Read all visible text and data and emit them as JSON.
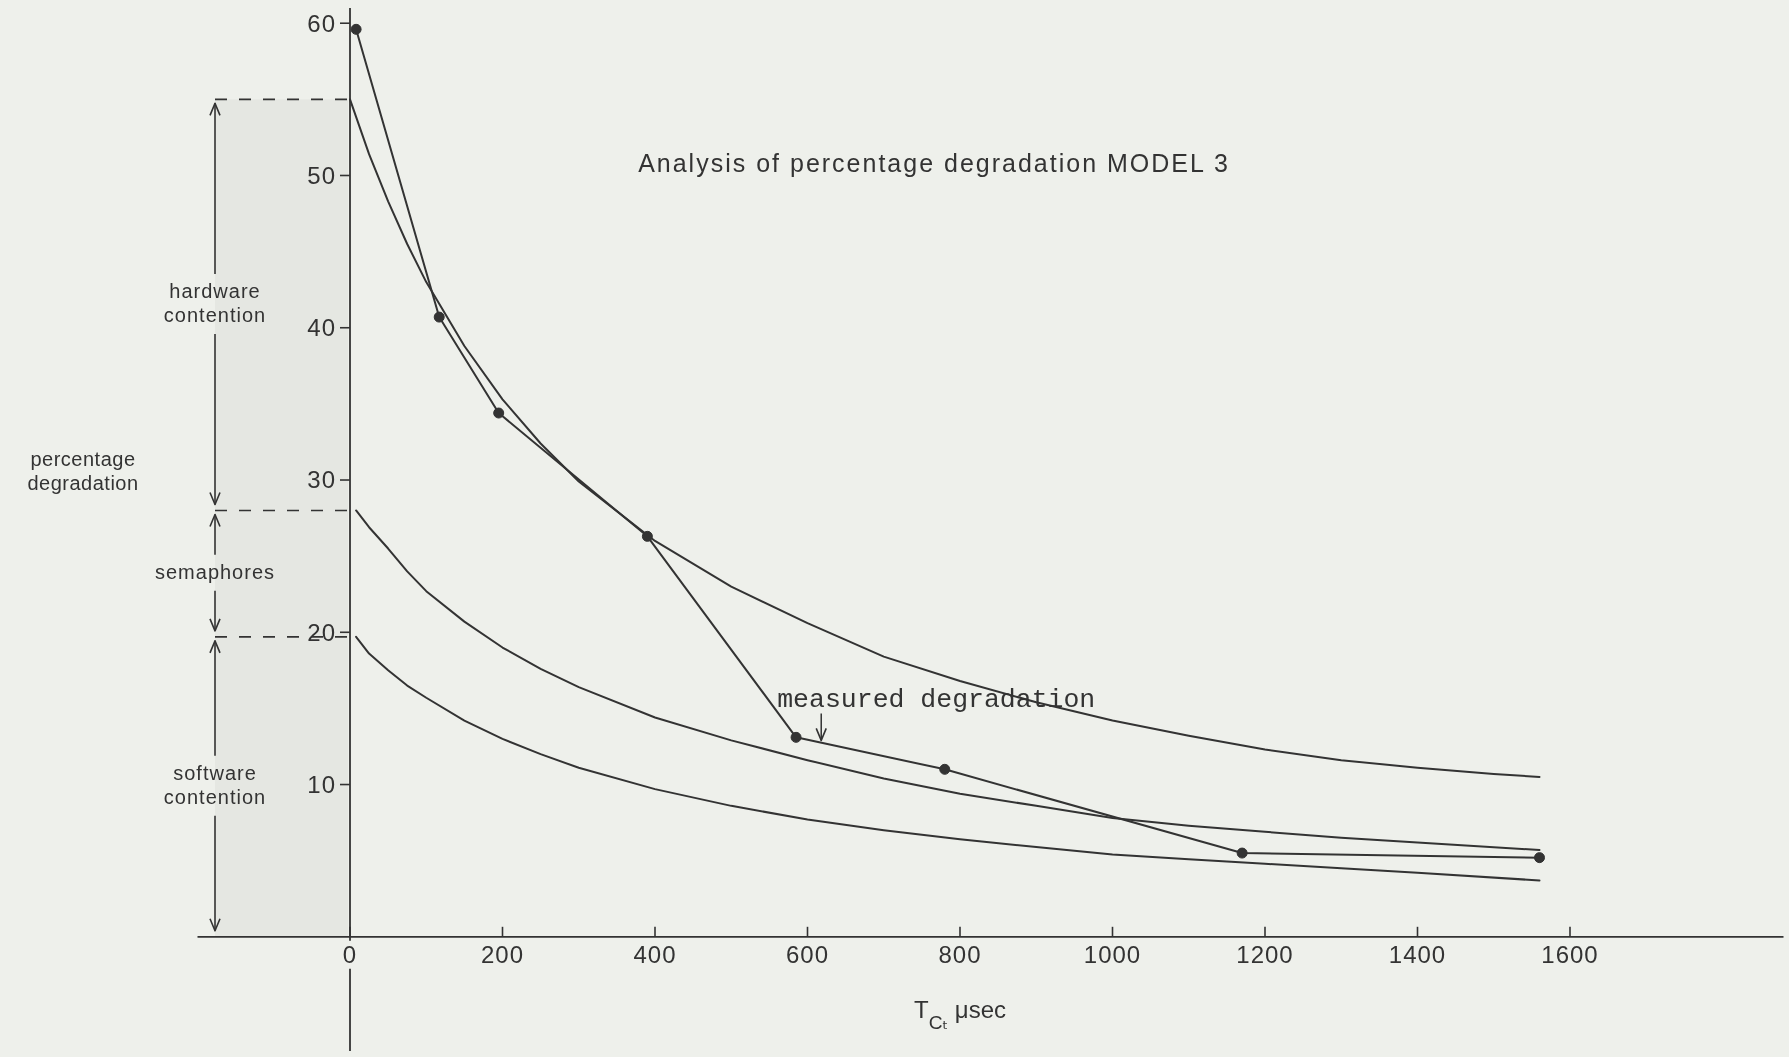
{
  "chart_data": {
    "type": "line",
    "title": "Analysis of percentage degradation  MODEL 3",
    "xlabel": "T$_{Cₜ}$ μsec",
    "ylabel": "percentage degradation",
    "xlim": [
      -200,
      1880
    ],
    "ylim": [
      -7.5,
      61
    ],
    "xticks": [
      0,
      200,
      400,
      600,
      800,
      1000,
      1200,
      1400,
      1600
    ],
    "yticks": [
      10,
      20,
      30,
      40,
      50,
      60
    ],
    "series": [
      {
        "color": "#333333",
        "x": [
          0,
          25,
          50,
          75,
          100,
          150,
          200,
          250,
          300,
          400,
          500,
          600,
          700,
          800,
          900,
          1000,
          1100,
          1200,
          1300,
          1400,
          1500,
          1560
        ],
        "values": [
          55,
          51.4,
          48.3,
          45.5,
          43.0,
          38.8,
          35.3,
          32.4,
          29.9,
          26.0,
          23.0,
          20.6,
          18.4,
          16.8,
          15.4,
          14.2,
          13.2,
          12.3,
          11.6,
          11.1,
          10.7,
          10.5
        ]
      },
      {
        "color": "#333333",
        "x": [
          8,
          25,
          50,
          75,
          100,
          150,
          200,
          250,
          300,
          400,
          500,
          600,
          700,
          800,
          900,
          1000,
          1100,
          1200,
          1300,
          1400,
          1560
        ],
        "values": [
          28,
          26.9,
          25.5,
          24.0,
          22.7,
          20.7,
          19.0,
          17.6,
          16.4,
          14.4,
          12.9,
          11.6,
          10.4,
          9.4,
          8.6,
          7.8,
          7.3,
          6.9,
          6.5,
          6.2,
          5.7
        ]
      },
      {
        "color": "#333333",
        "x": [
          8,
          25,
          50,
          75,
          100,
          150,
          200,
          250,
          300,
          400,
          500,
          600,
          700,
          800,
          900,
          1000,
          1100,
          1200,
          1300,
          1400,
          1560
        ],
        "values": [
          19.7,
          18.6,
          17.5,
          16.5,
          15.7,
          14.2,
          13.0,
          12.0,
          11.1,
          9.7,
          8.6,
          7.7,
          7.0,
          6.4,
          5.9,
          5.4,
          5.1,
          4.8,
          4.5,
          4.2,
          3.7
        ]
      },
      {
        "color": "#333333",
        "marker": "circle",
        "x": [
          8,
          117,
          195,
          390,
          585,
          780,
          1170,
          1560
        ],
        "values": [
          59.6,
          40.7,
          34.4,
          26.3,
          13.1,
          11.0,
          5.5,
          5.2
        ]
      }
    ],
    "bands": [
      {
        "axis": "y",
        "from": 28,
        "to": 55,
        "label": "hardware contention"
      },
      {
        "axis": "y",
        "from": 19.7,
        "to": 28,
        "label": "semaphores"
      },
      {
        "axis": "y",
        "from": 0,
        "to": 19.7,
        "label": "software contention"
      }
    ],
    "annotations": [
      {
        "text": "measured degradation",
        "x": 618,
        "y": 12.7
      }
    ]
  }
}
